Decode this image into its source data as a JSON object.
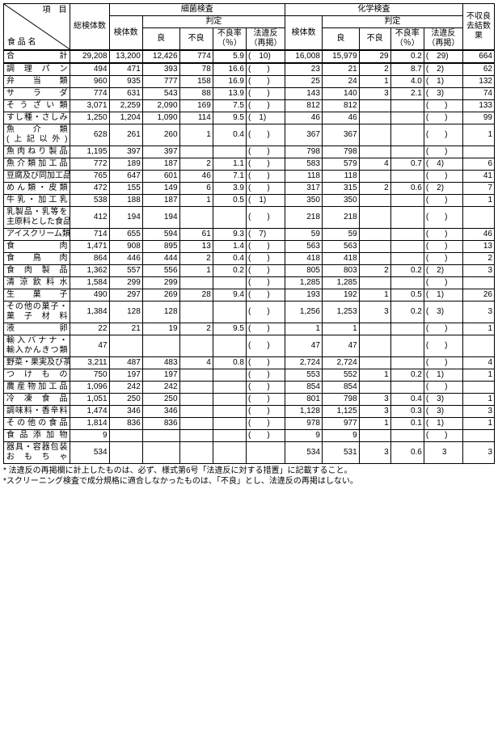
{
  "header": {
    "corner_top": "項　目",
    "corner_bottom": "食 品 名",
    "total_samples": "総検体数",
    "bacteria": "細菌検査",
    "chemical": "化学検査",
    "judgment": "判定",
    "sub_samples": "検体数",
    "good": "良",
    "bad": "不良",
    "bad_rate": "不良率（％）",
    "law": "法違反（再掲）",
    "last": "不収良去結数果"
  },
  "rows": [
    {
      "name": "合　　　　計",
      "total": "29,208",
      "b_sub": "13,200",
      "b_good": "12,426",
      "b_bad": "774",
      "b_rate": "5.9",
      "b_law": "(　10)",
      "c_sub": "16,008",
      "c_good": "15,979",
      "c_bad": "29",
      "c_rate": "0.2",
      "c_law": "(　29)",
      "last": "664",
      "cls": "total"
    },
    {
      "name": "調　理　パ　ン",
      "total": "494",
      "b_sub": "471",
      "b_good": "393",
      "b_bad": "78",
      "b_rate": "16.6",
      "b_law": "(　　)",
      "c_sub": "23",
      "c_good": "21",
      "c_bad": "2",
      "c_rate": "8.7",
      "c_law": "(　2)",
      "last": "62"
    },
    {
      "name": "弁　　当　　類",
      "total": "960",
      "b_sub": "935",
      "b_good": "777",
      "b_bad": "158",
      "b_rate": "16.9",
      "b_law": "(　　)",
      "c_sub": "25",
      "c_good": "24",
      "c_bad": "1",
      "c_rate": "4.0",
      "c_law": "(　1)",
      "last": "132"
    },
    {
      "name": "サ　　ラ　　ダ",
      "total": "774",
      "b_sub": "631",
      "b_good": "543",
      "b_bad": "88",
      "b_rate": "13.9",
      "b_law": "(　　)",
      "c_sub": "143",
      "c_good": "140",
      "c_bad": "3",
      "c_rate": "2.1",
      "c_law": "(　3)",
      "last": "74"
    },
    {
      "name": "そ う ざ い 類",
      "total": "3,071",
      "b_sub": "2,259",
      "b_good": "2,090",
      "b_bad": "169",
      "b_rate": "7.5",
      "b_law": "(　　)",
      "c_sub": "812",
      "c_good": "812",
      "c_bad": "",
      "c_rate": "",
      "c_law": "(　　)",
      "last": "133"
    },
    {
      "name": "すし種・さしみ",
      "total": "1,250",
      "b_sub": "1,204",
      "b_good": "1,090",
      "b_bad": "114",
      "b_rate": "9.5",
      "b_law": "(　1)",
      "c_sub": "46",
      "c_good": "46",
      "c_bad": "",
      "c_rate": "",
      "c_law": "(　　)",
      "last": "99"
    },
    {
      "name": "魚　介　類<br>(上記以外)",
      "total": "628",
      "b_sub": "261",
      "b_good": "260",
      "b_bad": "1",
      "b_rate": "0.4",
      "b_law": "(　　)",
      "c_sub": "367",
      "c_good": "367",
      "c_bad": "",
      "c_rate": "",
      "c_law": "(　　)",
      "last": "1"
    },
    {
      "name": "魚肉ねり製品",
      "total": "1,195",
      "b_sub": "397",
      "b_good": "397",
      "b_bad": "",
      "b_rate": "",
      "b_law": "(　　)",
      "c_sub": "798",
      "c_good": "798",
      "c_bad": "",
      "c_rate": "",
      "c_law": "(　　)",
      "last": ""
    },
    {
      "name": "魚介類加工品",
      "total": "772",
      "b_sub": "189",
      "b_good": "187",
      "b_bad": "2",
      "b_rate": "1.1",
      "b_law": "(　　)",
      "c_sub": "583",
      "c_good": "579",
      "c_bad": "4",
      "c_rate": "0.7",
      "c_law": "(　4)",
      "last": "6"
    },
    {
      "name": "豆腐及び同加工品",
      "total": "765",
      "b_sub": "647",
      "b_good": "601",
      "b_bad": "46",
      "b_rate": "7.1",
      "b_law": "(　　)",
      "c_sub": "118",
      "c_good": "118",
      "c_bad": "",
      "c_rate": "",
      "c_law": "(　　)",
      "last": "41"
    },
    {
      "name": "めん類・皮類",
      "total": "472",
      "b_sub": "155",
      "b_good": "149",
      "b_bad": "6",
      "b_rate": "3.9",
      "b_law": "(　　)",
      "c_sub": "317",
      "c_good": "315",
      "c_bad": "2",
      "c_rate": "0.6",
      "c_law": "(　2)",
      "last": "7"
    },
    {
      "name": "牛乳・加工乳",
      "total": "538",
      "b_sub": "188",
      "b_good": "187",
      "b_bad": "1",
      "b_rate": "0.5",
      "b_law": "(　1)",
      "c_sub": "350",
      "c_good": "350",
      "c_bad": "",
      "c_rate": "",
      "c_law": "(　　)",
      "last": "1"
    },
    {
      "name": "乳製品・乳等を<br>主原料とした食品",
      "total": "412",
      "b_sub": "194",
      "b_good": "194",
      "b_bad": "",
      "b_rate": "",
      "b_law": "(　　)",
      "c_sub": "218",
      "c_good": "218",
      "c_bad": "",
      "c_rate": "",
      "c_law": "(　　)",
      "last": ""
    },
    {
      "name": "アイスクリーム類",
      "total": "714",
      "b_sub": "655",
      "b_good": "594",
      "b_bad": "61",
      "b_rate": "9.3",
      "b_law": "(　7)",
      "c_sub": "59",
      "c_good": "59",
      "c_bad": "",
      "c_rate": "",
      "c_law": "(　　)",
      "last": "46"
    },
    {
      "name": "食　　　　肉",
      "total": "1,471",
      "b_sub": "908",
      "b_good": "895",
      "b_bad": "13",
      "b_rate": "1.4",
      "b_law": "(　　)",
      "c_sub": "563",
      "c_good": "563",
      "c_bad": "",
      "c_rate": "",
      "c_law": "(　　)",
      "last": "13"
    },
    {
      "name": "食　　鳥　　肉",
      "total": "864",
      "b_sub": "446",
      "b_good": "444",
      "b_bad": "2",
      "b_rate": "0.4",
      "b_law": "(　　)",
      "c_sub": "418",
      "c_good": "418",
      "c_bad": "",
      "c_rate": "",
      "c_law": "(　　)",
      "last": "2"
    },
    {
      "name": "食　肉　製　品",
      "total": "1,362",
      "b_sub": "557",
      "b_good": "556",
      "b_bad": "1",
      "b_rate": "0.2",
      "b_law": "(　　)",
      "c_sub": "805",
      "c_good": "803",
      "c_bad": "2",
      "c_rate": "0.2",
      "c_law": "(　2)",
      "last": "3"
    },
    {
      "name": "清 涼 飲 料 水",
      "total": "1,584",
      "b_sub": "299",
      "b_good": "299",
      "b_bad": "",
      "b_rate": "",
      "b_law": "(　　)",
      "c_sub": "1,285",
      "c_good": "1,285",
      "c_bad": "",
      "c_rate": "",
      "c_law": "(　　)",
      "last": ""
    },
    {
      "name": "生　　菓　　子",
      "total": "490",
      "b_sub": "297",
      "b_good": "269",
      "b_bad": "28",
      "b_rate": "9.4",
      "b_law": "(　　)",
      "c_sub": "193",
      "c_good": "192",
      "c_bad": "1",
      "c_rate": "0.5",
      "c_law": "(　1)",
      "last": "26"
    },
    {
      "name": "その他の菓子・<br>菓子材料",
      "total": "1,384",
      "b_sub": "128",
      "b_good": "128",
      "b_bad": "",
      "b_rate": "",
      "b_law": "(　　)",
      "c_sub": "1,256",
      "c_good": "1,253",
      "c_bad": "3",
      "c_rate": "0.2",
      "c_law": "(　3)",
      "last": "3"
    },
    {
      "name": "液　　　　卵",
      "total": "22",
      "b_sub": "21",
      "b_good": "19",
      "b_bad": "2",
      "b_rate": "9.5",
      "b_law": "(　　)",
      "c_sub": "1",
      "c_good": "1",
      "c_bad": "",
      "c_rate": "",
      "c_law": "(　　)",
      "last": "1"
    },
    {
      "name": "輸入バナナ・<br>輸入かんきつ類",
      "total": "47",
      "b_sub": "",
      "b_good": "",
      "b_bad": "",
      "b_rate": "",
      "b_law": "(　　)",
      "c_sub": "47",
      "c_good": "47",
      "c_bad": "",
      "c_rate": "",
      "c_law": "(　　)",
      "last": ""
    },
    {
      "name": "野菜・果実及び茶",
      "total": "3,211",
      "b_sub": "487",
      "b_good": "483",
      "b_bad": "4",
      "b_rate": "0.8",
      "b_law": "(　　)",
      "c_sub": "2,724",
      "c_good": "2,724",
      "c_bad": "",
      "c_rate": "",
      "c_law": "(　　)",
      "last": "4"
    },
    {
      "name": "つ　け　も　の",
      "total": "750",
      "b_sub": "197",
      "b_good": "197",
      "b_bad": "",
      "b_rate": "",
      "b_law": "(　　)",
      "c_sub": "553",
      "c_good": "552",
      "c_bad": "1",
      "c_rate": "0.2",
      "c_law": "(　1)",
      "last": "1"
    },
    {
      "name": "農産物加工品",
      "total": "1,096",
      "b_sub": "242",
      "b_good": "242",
      "b_bad": "",
      "b_rate": "",
      "b_law": "(　　)",
      "c_sub": "854",
      "c_good": "854",
      "c_bad": "",
      "c_rate": "",
      "c_law": "(　　)",
      "last": ""
    },
    {
      "name": "冷　凍　食　品",
      "total": "1,051",
      "b_sub": "250",
      "b_good": "250",
      "b_bad": "",
      "b_rate": "",
      "b_law": "(　　)",
      "c_sub": "801",
      "c_good": "798",
      "c_bad": "3",
      "c_rate": "0.4",
      "c_law": "(　3)",
      "last": "1"
    },
    {
      "name": "調味料・香辛料",
      "total": "1,474",
      "b_sub": "346",
      "b_good": "346",
      "b_bad": "",
      "b_rate": "",
      "b_law": "(　　)",
      "c_sub": "1,128",
      "c_good": "1,125",
      "c_bad": "3",
      "c_rate": "0.3",
      "c_law": "(　3)",
      "last": "3"
    },
    {
      "name": "その他の食品",
      "total": "1,814",
      "b_sub": "836",
      "b_good": "836",
      "b_bad": "",
      "b_rate": "",
      "b_law": "(　　)",
      "c_sub": "978",
      "c_good": "977",
      "c_bad": "1",
      "c_rate": "0.1",
      "c_law": "(　1)",
      "last": "1"
    },
    {
      "name": "食 品 添 加 物",
      "total": "9",
      "b_sub": "",
      "b_good": "",
      "b_bad": "",
      "b_rate": "",
      "b_law": "(　　)",
      "c_sub": "9",
      "c_good": "9",
      "c_bad": "",
      "c_rate": "",
      "c_law": "(　　)",
      "last": ""
    },
    {
      "name": "器具・容器包装<br>お　も　ち　ゃ",
      "total": "534",
      "b_sub": "",
      "b_good": "",
      "b_bad": "",
      "b_rate": "",
      "b_law": "",
      "c_sub": "534",
      "c_good": "531",
      "c_bad": "3",
      "c_rate": "0.6",
      "c_law": "　　3",
      "last": "3"
    }
  ],
  "notes": [
    "* 法違反の再掲欄に計上したものは、必ず、様式第6号「法違反に対する措置」に記載すること。",
    "*スクリーニング検査で成分規格に適合しなかったものは、「不良」とし、法違反の再掲はしない。"
  ]
}
